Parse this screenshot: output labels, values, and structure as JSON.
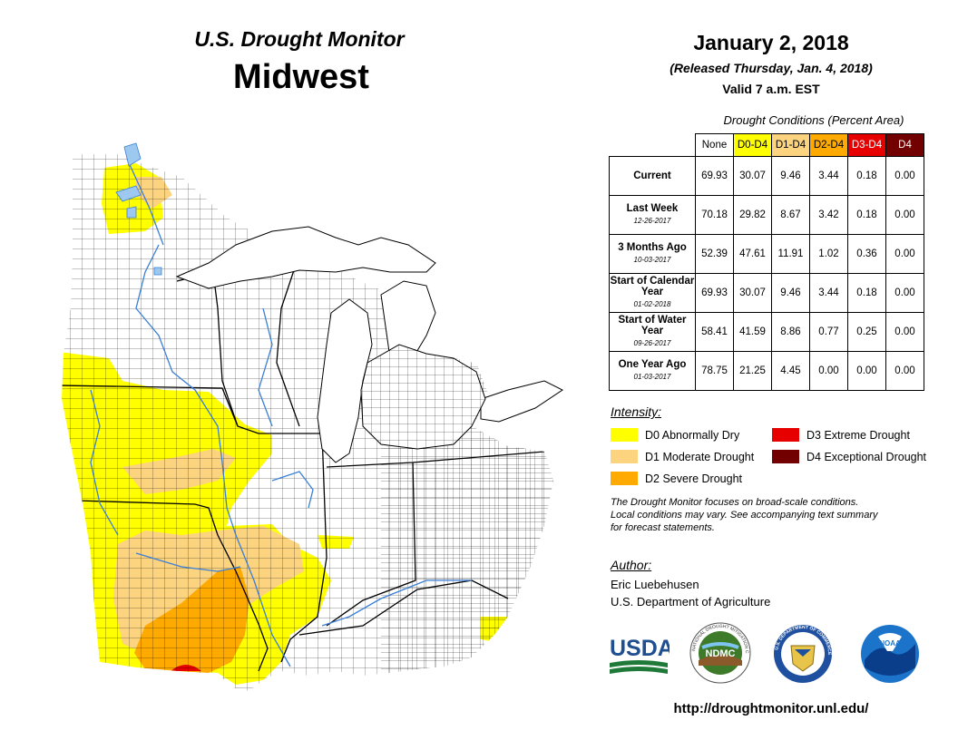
{
  "header": {
    "product": "U.S. Drought Monitor",
    "region": "Midwest",
    "date": "January 2, 2018",
    "released": "(Released Thursday, Jan. 4, 2018)",
    "valid": "Valid 7 a.m. EST"
  },
  "table": {
    "caption": "Drought Conditions (Percent Area)",
    "columns": [
      {
        "label": "None",
        "color": "#ffffff",
        "text_color": "#000000"
      },
      {
        "label": "D0-D4",
        "color": "#ffff00",
        "text_color": "#000000"
      },
      {
        "label": "D1-D4",
        "color": "#fcd37f",
        "text_color": "#000000"
      },
      {
        "label": "D2-D4",
        "color": "#ffaa00",
        "text_color": "#000000"
      },
      {
        "label": "D3-D4",
        "color": "#e60000",
        "text_color": "#ffffff"
      },
      {
        "label": "D4",
        "color": "#730000",
        "text_color": "#ffffff"
      }
    ],
    "rows": [
      {
        "label": "Current",
        "date": "",
        "values": [
          "69.93",
          "30.07",
          "9.46",
          "3.44",
          "0.18",
          "0.00"
        ]
      },
      {
        "label": "Last Week",
        "date": "12-26-2017",
        "values": [
          "70.18",
          "29.82",
          "8.67",
          "3.42",
          "0.18",
          "0.00"
        ]
      },
      {
        "label": "3 Months Ago",
        "date": "10-03-2017",
        "values": [
          "52.39",
          "47.61",
          "11.91",
          "1.02",
          "0.36",
          "0.00"
        ]
      },
      {
        "label": "Start of Calendar Year",
        "date": "01-02-2018",
        "values": [
          "69.93",
          "30.07",
          "9.46",
          "3.44",
          "0.18",
          "0.00"
        ]
      },
      {
        "label": "Start of Water Year",
        "date": "09-26-2017",
        "values": [
          "58.41",
          "41.59",
          "8.86",
          "0.77",
          "0.25",
          "0.00"
        ]
      },
      {
        "label": "One Year Ago",
        "date": "01-03-2017",
        "values": [
          "78.75",
          "21.25",
          "4.45",
          "0.00",
          "0.00",
          "0.00"
        ]
      }
    ]
  },
  "legend": {
    "heading": "Intensity:",
    "items": [
      {
        "label": "D0 Abnormally Dry",
        "color": "#ffff00"
      },
      {
        "label": "D1 Moderate Drought",
        "color": "#fcd37f"
      },
      {
        "label": "D2 Severe Drought",
        "color": "#ffaa00"
      },
      {
        "label": "D3 Extreme Drought",
        "color": "#e60000"
      },
      {
        "label": "D4 Exceptional Drought",
        "color": "#730000"
      }
    ]
  },
  "note": {
    "line1": "The Drought Monitor focuses on broad-scale conditions.",
    "line2": "Local conditions may vary. See accompanying text summary",
    "line3": "for forecast statements."
  },
  "author": {
    "heading": "Author:",
    "name": "Eric Luebehusen",
    "organization": "U.S. Department of Agriculture"
  },
  "logos": {
    "usda": "USDA",
    "ndmc": "NDMC",
    "ndmc_ring": "NATIONAL DROUGHT MITIGATION CENTER",
    "doc": "U.S. DEPARTMENT OF COMMERCE",
    "noaa": "NOAA"
  },
  "url": "http://droughtmonitor.unl.edu/",
  "map": {
    "icon": "drought-map",
    "colors": {
      "none": "#ffffff",
      "water": "#9dc8ef",
      "river": "#3a7fd6"
    }
  }
}
